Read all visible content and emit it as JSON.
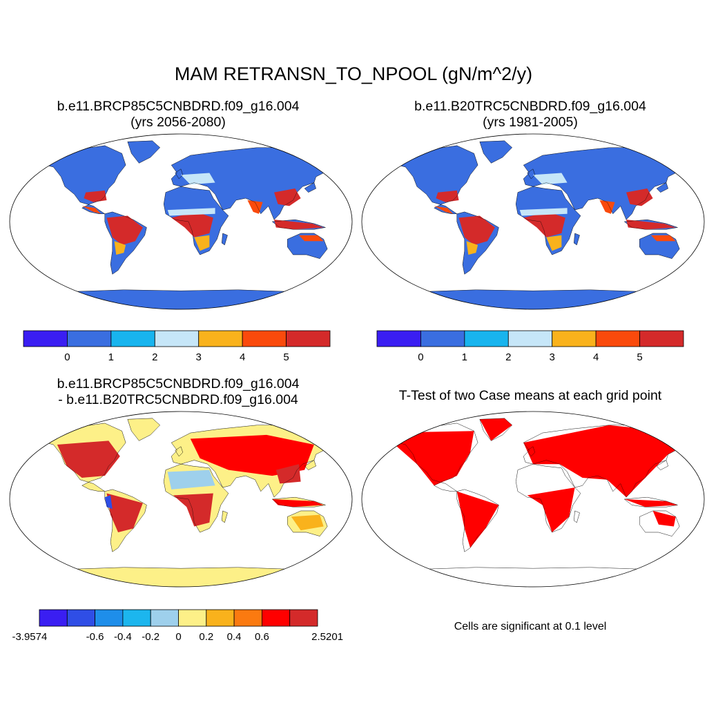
{
  "title": "MAM RETRANSN_TO_NPOOL (gN/m^2/y)",
  "panels": [
    {
      "id": "p1",
      "case": "b.e11.BRCP85C5CNBDRD.f09_g16.004",
      "subtitle": "(yrs 2056-2080)"
    },
    {
      "id": "p2",
      "case": "b.e11.B20TRC5CNBDRD.f09_g16.004",
      "subtitle": "(yrs 1981-2005)"
    },
    {
      "id": "p3",
      "case": "b.e11.BRCP85C5CNBDRD.f09_g16.004",
      "subtitle": "- b.e11.B20TRC5CNBDRD.f09_g16.004"
    },
    {
      "id": "p4",
      "case": "T-Test of two Case means at each grid point",
      "subtitle": ""
    }
  ],
  "colorbar_abs": {
    "colors": [
      "#3a1ef2",
      "#3a6ee0",
      "#18b4ee",
      "#c6e6f8",
      "#f9b21c",
      "#fa4a0c",
      "#d42a2a"
    ],
    "labels": [
      "0",
      "1",
      "2",
      "3",
      "4",
      "5"
    ]
  },
  "colorbar_diff": {
    "colors": [
      "#3a1ef2",
      "#2f4ee6",
      "#1e8eea",
      "#1cb6ee",
      "#9ed0ec",
      "#fdf088",
      "#f9b21c",
      "#fb7a10",
      "#ff0000",
      "#d42a2a"
    ],
    "labels": [
      "-3.9574",
      "-0.6",
      "-0.4",
      "-0.2",
      "0",
      "0.2",
      "0.4",
      "0.6",
      "2.5201"
    ]
  },
  "significance_note": "Cells are significant at 0.1 level"
}
